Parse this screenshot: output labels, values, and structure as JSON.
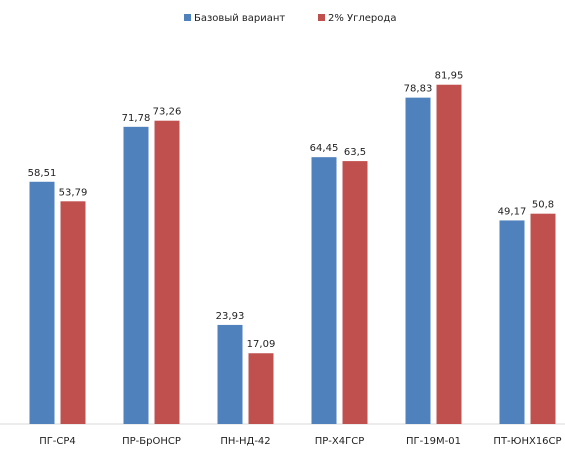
{
  "chart_data": {
    "type": "bar",
    "categories": [
      "ПГ-СР4",
      "ПР-БрОНСР",
      "ПН-НД-42",
      "ПР-Х4ГСР",
      "ПГ-19М-01",
      "ПТ-ЮНХ16СР"
    ],
    "series": [
      {
        "name": "Базовый вариант",
        "values": [
          58.51,
          71.78,
          23.93,
          64.45,
          78.83,
          49.17
        ],
        "labels": [
          "58,51",
          "71,78",
          "23,93",
          "64,45",
          "78,83",
          "49,17"
        ],
        "color": "#4F81BD"
      },
      {
        "name": "2% Углерода",
        "values": [
          53.79,
          73.26,
          17.09,
          63.5,
          81.95,
          50.8
        ],
        "labels": [
          "53,79",
          "73,26",
          "17,09",
          "63,5",
          "81,95",
          "50,8"
        ],
        "color": "#C0504D"
      }
    ],
    "ylim": [
      0,
      100
    ],
    "grid": false,
    "legend_position": "top-center",
    "title": "",
    "xlabel": "",
    "ylabel": ""
  }
}
